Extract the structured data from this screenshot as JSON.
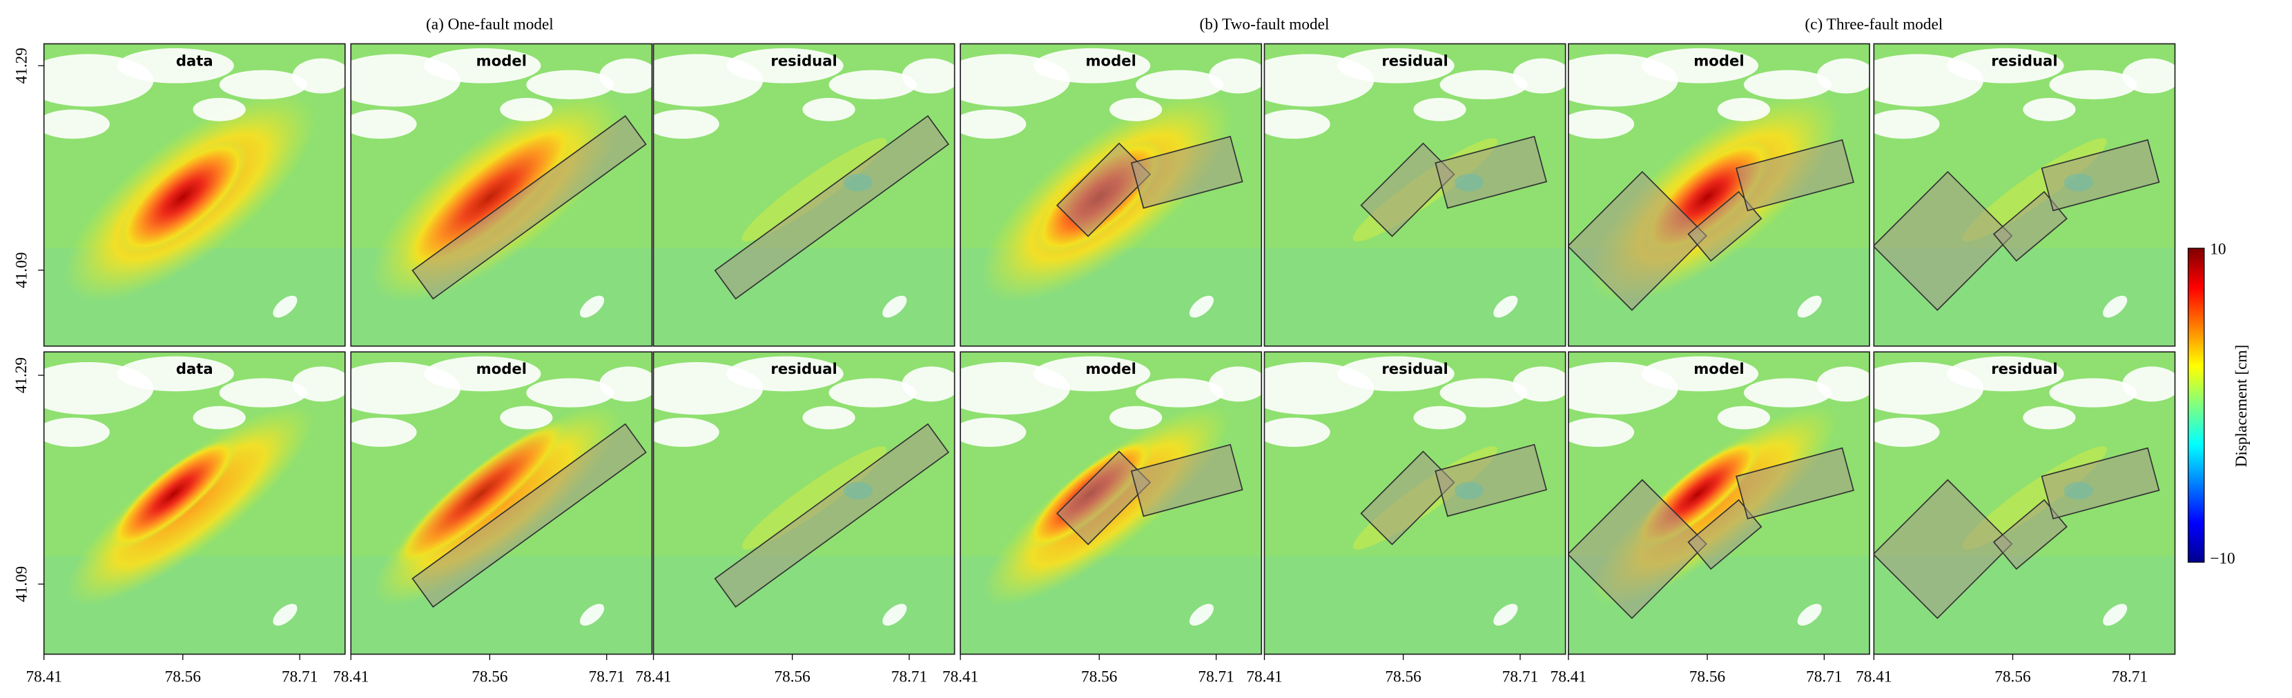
{
  "columns": [
    {
      "title": "(a) One-fault model"
    },
    {
      "title": "(b) Two-fault model"
    },
    {
      "title": "(c) Three-fault model"
    }
  ],
  "rows": [
    [
      "data",
      "model",
      "residual",
      "model",
      "residual",
      "model",
      "residual"
    ],
    [
      "data",
      "model",
      "residual",
      "model",
      "residual",
      "model",
      "residual"
    ]
  ],
  "x_ticks": [
    "78.41",
    "78.56",
    "78.71"
  ],
  "y_ticks": [
    "41.29",
    "41.09"
  ],
  "colorbar": {
    "label": "Displacement [cm]",
    "max": "10",
    "min": "−10"
  }
}
